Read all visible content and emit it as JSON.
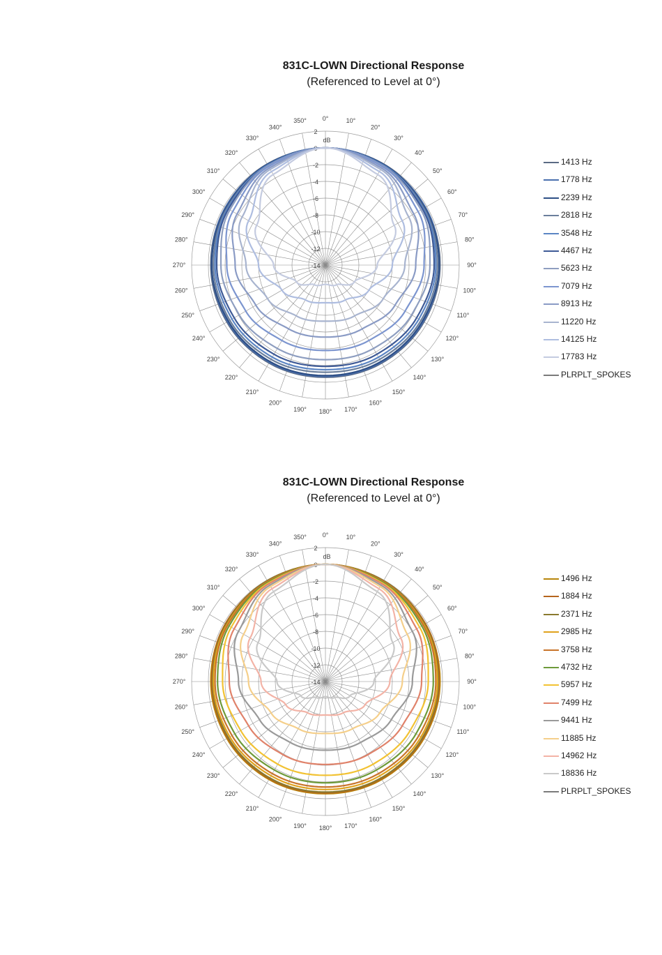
{
  "chart_data": [
    {
      "type": "polar-line",
      "title": "831C-LOWN Directional Response",
      "subtitle": "(Referenced to Level at 0°)",
      "radial_unit": "dB",
      "radial_ticks": [
        "2",
        "0",
        "-2",
        "-4",
        "-6",
        "-8",
        "-10",
        "-12",
        "-14"
      ],
      "radial_range": [
        -14,
        2
      ],
      "angle_ticks": [
        "0°",
        "10°",
        "20°",
        "30°",
        "40°",
        "50°",
        "60°",
        "70°",
        "80°",
        "90°",
        "100°",
        "110°",
        "120°",
        "130°",
        "140°",
        "150°",
        "160°",
        "170°",
        "180°",
        "190°",
        "200°",
        "210°",
        "220°",
        "230°",
        "240°",
        "250°",
        "260°",
        "270°",
        "280°",
        "290°",
        "300°",
        "310°",
        "320°",
        "330°",
        "340°",
        "350°"
      ],
      "angles": [
        0,
        30,
        60,
        90,
        120,
        150,
        180
      ],
      "legend_position": "right",
      "series": [
        {
          "name": "1413 Hz",
          "color": "#5a6a84",
          "values": [
            0,
            -0.1,
            -0.2,
            -0.3,
            -0.4,
            -0.5,
            -0.6
          ]
        },
        {
          "name": "1778 Hz",
          "color": "#4a6fae",
          "values": [
            0,
            -0.1,
            -0.2,
            -0.4,
            -0.5,
            -0.6,
            -0.7
          ]
        },
        {
          "name": "2239 Hz",
          "color": "#2e4f86",
          "values": [
            0,
            -0.1,
            -0.3,
            -0.4,
            -0.6,
            -0.7,
            -0.8
          ]
        },
        {
          "name": "2818 Hz",
          "color": "#6b7f9c",
          "values": [
            0,
            -0.2,
            -0.4,
            -0.6,
            -0.8,
            -1.0,
            -1.2
          ]
        },
        {
          "name": "3548 Hz",
          "color": "#5b85c4",
          "values": [
            0,
            -0.2,
            -0.5,
            -0.8,
            -1.1,
            -1.3,
            -1.5
          ]
        },
        {
          "name": "4467 Hz",
          "color": "#3e5a96",
          "values": [
            0,
            -0.3,
            -0.6,
            -1.0,
            -1.4,
            -1.7,
            -1.9
          ]
        },
        {
          "name": "5623 Hz",
          "color": "#8e9ec0",
          "values": [
            0,
            -0.3,
            -0.8,
            -1.5,
            -2.1,
            -2.5,
            -2.7
          ]
        },
        {
          "name": "7079 Hz",
          "color": "#7c95cf",
          "values": [
            0,
            -0.4,
            -1.2,
            -2.2,
            -3.0,
            -3.6,
            -3.8
          ]
        },
        {
          "name": "8913 Hz",
          "color": "#8a9bc5",
          "values": [
            0,
            -0.6,
            -1.8,
            -3.2,
            -4.4,
            -5.2,
            -5.4
          ]
        },
        {
          "name": "11220 Hz",
          "color": "#a8b4cf",
          "values": [
            0,
            -0.8,
            -2.5,
            -4.5,
            -6.0,
            -7.0,
            -7.3
          ]
        },
        {
          "name": "14125 Hz",
          "color": "#aebde0",
          "values": [
            0,
            -1.1,
            -3.4,
            -6.0,
            -8.0,
            -9.2,
            -9.5
          ]
        },
        {
          "name": "17783 Hz",
          "color": "#c4cbe0",
          "values": [
            0,
            -1.5,
            -4.5,
            -7.8,
            -10.0,
            -11.3,
            -11.7
          ]
        },
        {
          "name": "PLRPLT_SPOKES",
          "color": "#7a7a7a",
          "values": []
        }
      ]
    },
    {
      "type": "polar-line",
      "title": "831C-LOWN Directional Response",
      "subtitle": "(Referenced to Level at 0°)",
      "radial_unit": "dB",
      "radial_ticks": [
        "2",
        "0",
        "-2",
        "-4",
        "-6",
        "-8",
        "-10",
        "-12",
        "-14"
      ],
      "radial_range": [
        -14,
        2
      ],
      "angle_ticks": [
        "0°",
        "10°",
        "20°",
        "30°",
        "40°",
        "50°",
        "60°",
        "70°",
        "80°",
        "90°",
        "100°",
        "110°",
        "120°",
        "130°",
        "140°",
        "150°",
        "160°",
        "170°",
        "180°",
        "190°",
        "200°",
        "210°",
        "220°",
        "230°",
        "240°",
        "250°",
        "260°",
        "270°",
        "280°",
        "290°",
        "300°",
        "310°",
        "320°",
        "330°",
        "340°",
        "350°"
      ],
      "angles": [
        0,
        30,
        60,
        90,
        120,
        150,
        180
      ],
      "legend_position": "right",
      "series": [
        {
          "name": "1496 Hz",
          "color": "#b8860b",
          "values": [
            0,
            -0.1,
            -0.2,
            -0.3,
            -0.4,
            -0.5,
            -0.6
          ]
        },
        {
          "name": "1884 Hz",
          "color": "#b5651d",
          "values": [
            0,
            -0.1,
            -0.2,
            -0.4,
            -0.5,
            -0.6,
            -0.7
          ]
        },
        {
          "name": "2371 Hz",
          "color": "#8a7a2e",
          "values": [
            0,
            -0.1,
            -0.3,
            -0.5,
            -0.6,
            -0.7,
            -0.8
          ]
        },
        {
          "name": "2985 Hz",
          "color": "#e0a21c",
          "values": [
            0,
            -0.2,
            -0.4,
            -0.6,
            -0.8,
            -1.0,
            -1.1
          ]
        },
        {
          "name": "3758 Hz",
          "color": "#c8742a",
          "values": [
            0,
            -0.2,
            -0.5,
            -0.8,
            -1.1,
            -1.3,
            -1.4
          ]
        },
        {
          "name": "4732 Hz",
          "color": "#6e9a3a",
          "values": [
            0,
            -0.3,
            -0.7,
            -1.1,
            -1.5,
            -1.8,
            -1.9
          ]
        },
        {
          "name": "5957 Hz",
          "color": "#f2c233",
          "values": [
            0,
            -0.4,
            -1.0,
            -1.7,
            -2.3,
            -2.6,
            -2.8
          ]
        },
        {
          "name": "7499 Hz",
          "color": "#e0826a",
          "values": [
            0,
            -0.5,
            -1.4,
            -2.5,
            -3.4,
            -3.9,
            -4.1
          ]
        },
        {
          "name": "9441 Hz",
          "color": "#9a9a9a",
          "values": [
            0,
            -0.7,
            -2.0,
            -3.6,
            -4.9,
            -5.6,
            -5.8
          ]
        },
        {
          "name": "11885 Hz",
          "color": "#f5cf8a",
          "values": [
            0,
            -0.9,
            -2.7,
            -4.8,
            -6.5,
            -7.5,
            -7.8
          ]
        },
        {
          "name": "14962 Hz",
          "color": "#f3b3a6",
          "values": [
            0,
            -1.2,
            -3.6,
            -6.3,
            -8.5,
            -9.7,
            -10.0
          ]
        },
        {
          "name": "18836 Hz",
          "color": "#c9c9c9",
          "values": [
            0,
            -1.6,
            -4.7,
            -8.2,
            -10.6,
            -11.8,
            -12.2
          ]
        },
        {
          "name": "PLRPLT_SPOKES",
          "color": "#7a7a7a",
          "values": []
        }
      ]
    }
  ]
}
